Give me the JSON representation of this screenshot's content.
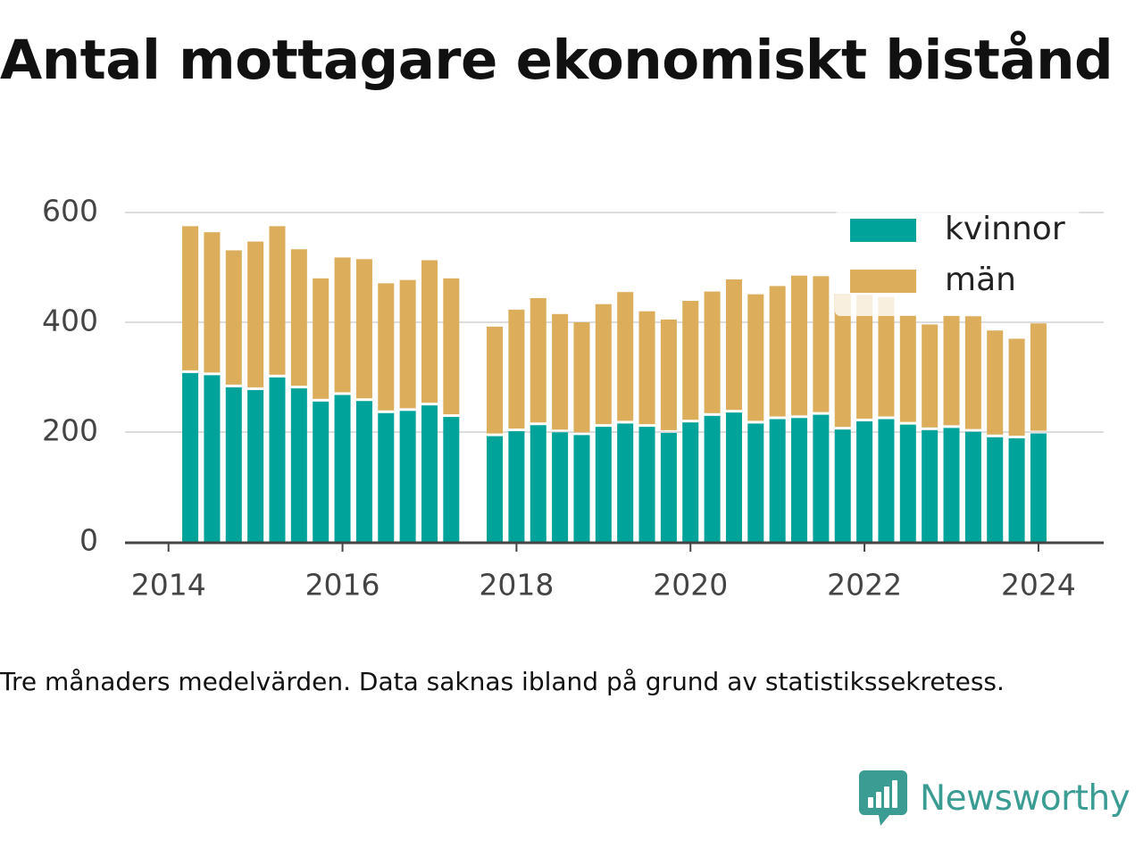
{
  "title": "Antal mottagare ekonomiskt bistånd",
  "caption": "Tre månaders medelvärden. Data saknas ibland på grund av statistikssekretess.",
  "brand": {
    "name": "Newsworthy",
    "icon": "newsworthy-logo-icon",
    "color": "#3a9c93"
  },
  "chart_data": {
    "type": "bar",
    "stacked": true,
    "x_unit": "year",
    "x": [
      2014.25,
      2014.5,
      2014.75,
      2015.0,
      2015.25,
      2015.5,
      2015.75,
      2016.0,
      2016.25,
      2016.5,
      2016.75,
      2017.0,
      2017.25,
      null,
      2017.75,
      2018.0,
      2018.25,
      2018.5,
      2018.75,
      2019.0,
      2019.25,
      2019.5,
      2019.75,
      2020.0,
      2020.25,
      2020.5,
      2020.75,
      2021.0,
      2021.25,
      2021.5,
      2021.75,
      2022.0,
      2022.25,
      2022.5,
      2022.75,
      2023.0,
      2023.25,
      2023.5,
      2023.75,
      2024.0
    ],
    "series": [
      {
        "name": "kvinnor",
        "color": "#00a39a",
        "values": [
          310,
          306,
          284,
          279,
          302,
          282,
          258,
          270,
          259,
          237,
          241,
          251,
          230,
          null,
          195,
          204,
          215,
          202,
          197,
          212,
          218,
          212,
          201,
          220,
          232,
          238,
          218,
          226,
          228,
          234,
          207,
          222,
          226,
          216,
          206,
          210,
          203,
          193,
          191,
          200
        ]
      },
      {
        "name": "män",
        "color": "#dcae5c",
        "values": [
          265,
          258,
          247,
          268,
          273,
          251,
          222,
          248,
          256,
          234,
          236,
          262,
          250,
          null,
          197,
          219,
          229,
          213,
          203,
          221,
          237,
          208,
          204,
          219,
          224,
          240,
          233,
          240,
          257,
          250,
          245,
          228,
          220,
          197,
          190,
          202,
          208,
          192,
          179,
          198
        ]
      }
    ],
    "xlabel": "",
    "ylabel": "",
    "xlim": [
      2013.5,
      2024.75
    ],
    "ylim": [
      0,
      600
    ],
    "xticks": [
      "2014",
      "2016",
      "2018",
      "2020",
      "2022",
      "2024"
    ],
    "yticks": [
      "0",
      "200",
      "400",
      "600"
    ],
    "grid": true,
    "legend": "top-right"
  }
}
